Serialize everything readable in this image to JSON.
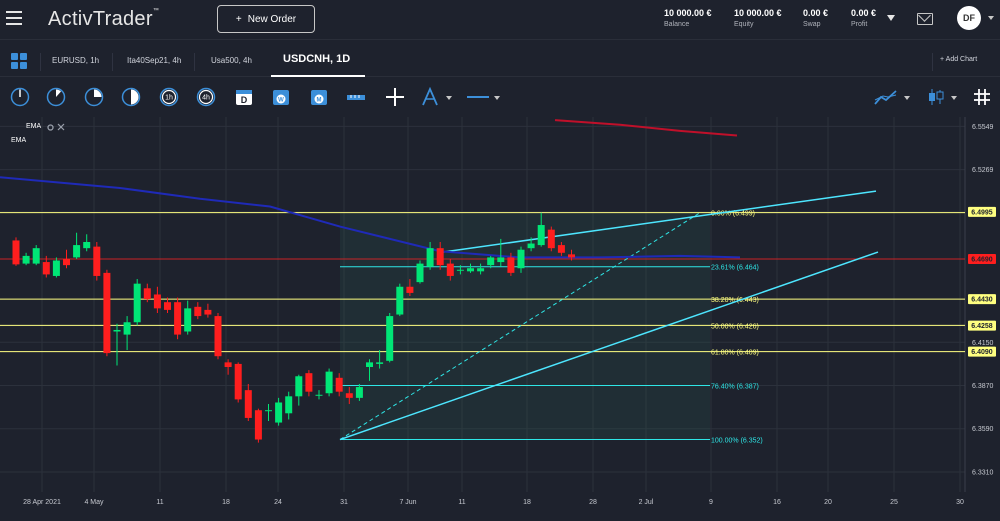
{
  "app": {
    "logo": "ActivTrader",
    "logo_mark": "™"
  },
  "header": {
    "new_order": "New Order",
    "stats": [
      {
        "value": "10 000.00 €",
        "label": "Balance"
      },
      {
        "value": "10 000.00 €",
        "label": "Equity"
      },
      {
        "value": "0.00 €",
        "label": "Swap"
      },
      {
        "value": "0.00 €",
        "label": "Profit"
      }
    ],
    "user_initials": "DF"
  },
  "tabs": [
    {
      "label": "EURUSD, 1h",
      "active": false
    },
    {
      "label": "Ita40Sep21, 4h",
      "active": false
    },
    {
      "label": "Usa500, 4h",
      "active": false
    },
    {
      "label": "USDCNH, 1D",
      "active": true
    }
  ],
  "add_chart": "Add Chart",
  "toolbar": {
    "timeframe_icons": [
      "1m",
      "5m",
      "15m",
      "30m",
      "1h",
      "4h"
    ],
    "period_icons": [
      "D",
      "W",
      "M"
    ]
  },
  "indicators": [
    "EMA",
    "EMA"
  ],
  "colors": {
    "bull": "#00e676",
    "bear": "#ff1e1e",
    "fib": "#ffff80",
    "fib_teal": "#2ee6e6",
    "ema_blue": "#1f2ab8",
    "ema_red": "#c0102a",
    "channel": "#4de6ff"
  },
  "chart_data": {
    "type": "candlestick",
    "symbol": "USDCNH",
    "timeframe": "1D",
    "x_ticks": [
      "28 Apr 2021",
      "4 May",
      "11",
      "18",
      "24",
      "31",
      "7 Jun",
      "11",
      "18",
      "28",
      "2 Jul",
      "9",
      "16",
      "20",
      "25",
      "30"
    ],
    "y_ticks": [
      6.5549,
      6.5269,
      6.4995,
      6.469,
      6.443,
      6.4258,
      6.415,
      6.409,
      6.387,
      6.359,
      6.331
    ],
    "y_ticks_printed": [
      "6.5549",
      "6.5269",
      "6.4995",
      "6.4690",
      "6.4430",
      "6.4258",
      "6.4150",
      "6.4090",
      "6.3870",
      "6.3590",
      "6.3310"
    ],
    "y_range": [
      6.318,
      6.561
    ],
    "price_badges": [
      {
        "label": "6.4995",
        "value": 6.4995,
        "color": "#ffff80"
      },
      {
        "label": "6.4690",
        "value": 6.469,
        "color": "#ff1e1e"
      },
      {
        "label": "6.4430",
        "value": 6.443,
        "color": "#ffff80"
      },
      {
        "label": "6.4258",
        "value": 6.4258,
        "color": "#ffff80"
      },
      {
        "label": "6.4090",
        "value": 6.409,
        "color": "#ffff80"
      }
    ],
    "fib_levels": [
      {
        "label": "0.00% (6.499)",
        "value": 6.499
      },
      {
        "label": "23.61% (6.464)",
        "value": 6.464
      },
      {
        "label": "38.20% (6.443)",
        "value": 6.443
      },
      {
        "label": "50.00% (6.426)",
        "value": 6.426
      },
      {
        "label": "61.80% (6.409)",
        "value": 6.409
      },
      {
        "label": "76.40% (6.387)",
        "value": 6.387
      },
      {
        "label": "100.00% (6.352)",
        "value": 6.352
      }
    ],
    "candles": [
      [
        6.481,
        6.4655,
        6.483,
        6.4645
      ],
      [
        6.466,
        6.471,
        6.473,
        6.465
      ],
      [
        6.466,
        6.476,
        6.478,
        6.465
      ],
      [
        6.467,
        6.459,
        6.471,
        6.457
      ],
      [
        6.458,
        6.468,
        6.47,
        6.457
      ],
      [
        6.469,
        6.465,
        6.475,
        6.463
      ],
      [
        6.47,
        6.478,
        6.486,
        6.469
      ],
      [
        6.476,
        6.48,
        6.485,
        6.474
      ],
      [
        6.477,
        6.458,
        6.48,
        6.455
      ],
      [
        6.46,
        6.408,
        6.462,
        6.406
      ],
      [
        6.422,
        6.423,
        6.427,
        6.4
      ],
      [
        6.42,
        6.428,
        6.432,
        6.41
      ],
      [
        6.428,
        6.453,
        6.456,
        6.426
      ],
      [
        6.45,
        6.443,
        6.453,
        6.441
      ],
      [
        6.446,
        6.437,
        6.451,
        6.434
      ],
      [
        6.441,
        6.436,
        6.444,
        6.434
      ],
      [
        6.441,
        6.42,
        6.444,
        6.417
      ],
      [
        6.422,
        6.437,
        6.442,
        6.42
      ],
      [
        6.438,
        6.432,
        6.441,
        6.43
      ],
      [
        6.436,
        6.433,
        6.44,
        6.431
      ],
      [
        6.432,
        6.406,
        6.434,
        6.404
      ],
      [
        6.402,
        6.399,
        6.404,
        6.394
      ],
      [
        6.401,
        6.378,
        6.402,
        6.376
      ],
      [
        6.384,
        6.366,
        6.388,
        6.364
      ],
      [
        6.371,
        6.352,
        6.372,
        6.35
      ],
      [
        6.371,
        6.371,
        6.375,
        6.364
      ],
      [
        6.363,
        6.376,
        6.379,
        6.361
      ],
      [
        6.369,
        6.38,
        6.383,
        6.365
      ],
      [
        6.38,
        6.393,
        6.394,
        6.374
      ],
      [
        6.395,
        6.383,
        6.397,
        6.38
      ],
      [
        6.381,
        6.381,
        6.384,
        6.378
      ],
      [
        6.382,
        6.396,
        6.398,
        6.38
      ],
      [
        6.392,
        6.383,
        6.395,
        6.38
      ],
      [
        6.382,
        6.379,
        6.386,
        6.375
      ],
      [
        6.379,
        6.386,
        6.388,
        6.377
      ],
      [
        6.399,
        6.402,
        6.404,
        6.39
      ],
      [
        6.401,
        6.402,
        6.41,
        6.398
      ],
      [
        6.403,
        6.432,
        6.434,
        6.402
      ],
      [
        6.433,
        6.451,
        6.453,
        6.432
      ],
      [
        6.451,
        6.447,
        6.456,
        6.445
      ],
      [
        6.454,
        6.466,
        6.468,
        6.453
      ],
      [
        6.464,
        6.476,
        6.48,
        6.462
      ],
      [
        6.476,
        6.465,
        6.48,
        6.462
      ],
      [
        6.466,
        6.458,
        6.469,
        6.455
      ],
      [
        6.462,
        6.462,
        6.465,
        6.459
      ],
      [
        6.461,
        6.463,
        6.466,
        6.46
      ],
      [
        6.461,
        6.463,
        6.466,
        6.459
      ],
      [
        6.465,
        6.47,
        6.471,
        6.463
      ],
      [
        6.467,
        6.47,
        6.482,
        6.464
      ],
      [
        6.47,
        6.46,
        6.473,
        6.458
      ],
      [
        6.463,
        6.475,
        6.477,
        6.46
      ],
      [
        6.476,
        6.479,
        6.483,
        6.474
      ],
      [
        6.478,
        6.491,
        6.499,
        6.477
      ],
      [
        6.488,
        6.476,
        6.49,
        6.474
      ],
      [
        6.478,
        6.473,
        6.48,
        6.471
      ],
      [
        6.472,
        6.47,
        6.475,
        6.468
      ]
    ],
    "ema_blue": [
      6.522,
      6.515,
      6.508,
      6.503,
      6.49,
      6.474,
      6.47,
      6.47,
      6.471,
      6.47
    ],
    "ema_red": [
      6.559,
      6.556,
      6.552,
      6.549
    ]
  }
}
